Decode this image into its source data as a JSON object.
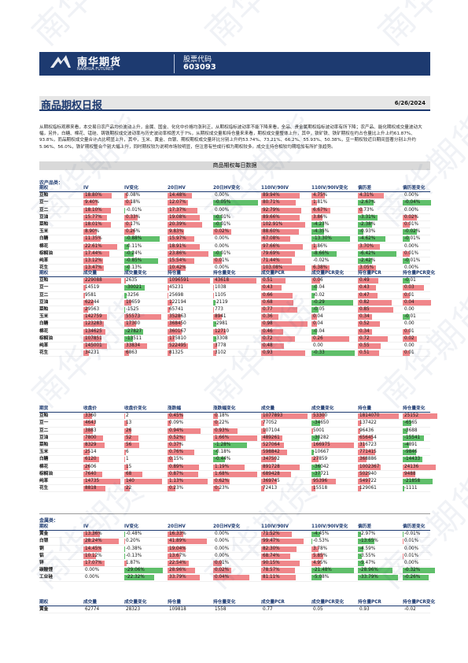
{
  "header": {
    "brand": "南华期货",
    "brand_en": "NANHUA FUTURES",
    "code_label": "股票代码",
    "code": "603093"
  },
  "title": "商品期权日报",
  "date": "6/26/2024",
  "summary": "从期权指标观察来看，本交易日农产品均价波动上升，金属、国金、化化中价格均涨利正，从期权指标波动率不能下降来看，全品、贵金属期权指标波动率有所下降；农产品、能化期权成交量波动大幅，另外，白糖、棉花、锰硅、铸铁期权成交波动率与历史波动率相差大于7%，从期权成交量和持仓量来来看，期权成交量整体上升，其中，铁矿铁、铁矿期权在约占仓量比上升上约61.87%、93.8%，而品期权成交量合计占比明显上升，其中，玉米、黄金、白银、期权期权成交量环比分别上升约53.74%、73.21%、66.2%、55.93%、50.38%，豆一期权较近日期间显著分别上升约5.96%、56.0%，铁矿期权整合个别大幅上升，同时期权较为说明市场较明显，但注意有些成行相为期权较多。成交主持仓相较均期增加有所扩张趋势。",
  "section": "商品期权每日数据",
  "ag": {
    "label": "农产品类：",
    "h1": [
      "期权",
      "IV",
      "IV变化",
      "20日HV",
      "20日HV变化",
      "110IV/90IV",
      "110IV/90IV变化",
      "偏历差",
      "偏历差变化"
    ],
    "n": [
      "豆粕",
      "豆一",
      "豆二",
      "豆油",
      "菜粕",
      "玉米",
      "白糖",
      "棉花",
      "棕榈油",
      "纯苯",
      "花生"
    ],
    "t1": [
      [
        "18.80%",
        "0.08%",
        "14.48%",
        "0.00%",
        "89.94%",
        "4.75%",
        "4.31%",
        "0.00%"
      ],
      [
        "9.40%",
        "0.18%",
        "12.07%",
        "-0.05%",
        "80.71%",
        "1.81%",
        "-2.67%",
        "-0.04%"
      ],
      [
        "18.10%",
        "-0.01%",
        "17.37%",
        "0.00%",
        "92.79%",
        "6.67%",
        "0.73%",
        "0.00%"
      ],
      [
        "15.77%",
        "0.33%",
        "19.08%",
        "-0.01%",
        "89.66%",
        "3.86%",
        "-3.31%",
        "0.02%"
      ],
      [
        "18.01%",
        "0.17%",
        "20.39%",
        "-0.01%",
        "102.91%",
        "-4.23%",
        "-2.38%",
        "0.01%"
      ],
      [
        "8.90%",
        "0.26%",
        "9.83%",
        "0.02%",
        "88.60%",
        "-4.35%",
        "-0.93%",
        "-0.02%"
      ],
      [
        "11.35%",
        "-0.88%",
        "15.97%",
        "0.00%",
        "67.08%",
        "-13.30%",
        "-4.62%",
        "-0.01%"
      ],
      [
        "22.61%",
        "-0.11%",
        "18.91%",
        "0.00%",
        "97.66%",
        "1.86%",
        "3.70%",
        "0.00%"
      ],
      [
        "17.44%",
        "-0.24%",
        "23.86%",
        "-0.01%",
        "79.69%",
        "-8.66%",
        "-6.42%",
        "0.01%"
      ],
      [
        "13.12%",
        "-0.85%",
        "15.54%",
        "0.01%",
        "71.44%",
        "-0.02%",
        "-2.42%",
        "-0.01%"
      ],
      [
        "13.47%",
        "-0.13%",
        "10.42%",
        "0.00%",
        "103.08%",
        "6.38%",
        "3.05%",
        "0.00%"
      ]
    ],
    "h2": [
      "期权",
      "成交量",
      "成交量变化",
      "持仓量",
      "持仓量变化",
      "成交量PCR",
      "成交量PCR变化",
      "持仓量PCR",
      "持仓量PCR变化"
    ],
    "t2": [
      [
        "229088",
        "2635",
        "1096591",
        "43618",
        "0.51",
        "0.06",
        "0.49",
        "-0.01"
      ],
      [
        "14519",
        "-30021",
        "45231",
        "1038",
        "0.43",
        "-0.04",
        "0.43",
        "0.03"
      ],
      [
        "9581",
        "-3256",
        "25698",
        "1105",
        "0.66",
        "-0.02",
        "0.47",
        "0.01"
      ],
      [
        "62244",
        "10659",
        "122194",
        "-2119",
        "0.68",
        "-0.29",
        "0.82",
        "0.04"
      ],
      [
        "29563",
        "-1525",
        "65741",
        "773",
        "0.77",
        "-0.05",
        "0.85",
        "0.00"
      ],
      [
        "142759",
        "55573",
        "352863",
        "8941",
        "0.36",
        "0.04",
        "0.34",
        "-0.01"
      ],
      [
        "123283",
        "17300",
        "368450",
        "-2981",
        "0.98",
        "0.04",
        "0.52",
        "0.00"
      ],
      [
        "134625",
        "-27827",
        "360167",
        "12710",
        "0.46",
        "-0.04",
        "0.34",
        "0.01"
      ],
      [
        "107851",
        "-13511",
        "175810",
        "-3308",
        "0.72",
        "0.26",
        "0.72",
        "0.02"
      ],
      [
        "145001",
        "33834",
        "522495",
        "3778",
        "0.48",
        "0.00",
        "0.55",
        "0.00"
      ],
      [
        "34231",
        "6863",
        "81325",
        "3102",
        "0.93",
        "-0.33",
        "0.51",
        "0.01"
      ]
    ],
    "h3": [
      "期货",
      "收盘价",
      "收盘价变化",
      "涨跌幅",
      "涨跌幅变化",
      "成交量",
      "成交量变化",
      "持仓量",
      "持仓量变化"
    ],
    "t3": [
      [
        "3360",
        "2",
        "0.45%",
        "0.18%",
        "1077893",
        "53300",
        "1814070",
        "25152"
      ],
      [
        "4643",
        "13",
        "0.09%",
        "0.22%",
        "77052",
        "-34650",
        "137422",
        "-6565"
      ],
      [
        "3883",
        "26",
        "0.94%",
        "0.93%",
        "107104",
        "5001",
        "96436",
        "-3688"
      ],
      [
        "7800",
        "52",
        "0.52%",
        "1.66%",
        "489261",
        "-30282",
        "656454",
        "-15541"
      ],
      [
        "8329",
        "56",
        "0.37%",
        "-1.28%",
        "527064",
        "166975",
        "316723",
        "-4891"
      ],
      [
        "2514",
        "6",
        "0.76%",
        "-0.18%",
        "598842",
        "-10667",
        "771415",
        "-9846"
      ],
      [
        "6120",
        "1",
        "0.15%",
        "-0.44%",
        "347502",
        "27859",
        "368886",
        "-14433"
      ],
      [
        "2606",
        "15",
        "0.89%",
        "1.19%",
        "891728",
        "-36042",
        "1002367",
        "24136"
      ],
      [
        "7640",
        "68",
        "0.87%",
        "1.68%",
        "689428",
        "-37721",
        "502940",
        "9488"
      ],
      [
        "14735",
        "140",
        "1.13%",
        "0.62%",
        "369745",
        "95396",
        "549722",
        "-21858"
      ],
      [
        "8818",
        "22",
        "0.23%",
        "0.23%",
        "72413",
        "15518",
        "129061",
        "-1111"
      ]
    ]
  },
  "mt": {
    "label": "金属类：",
    "n": [
      "黄金",
      "白银",
      "铜",
      "铝",
      "锌",
      "碳酸锂",
      "工业硅"
    ],
    "t1": [
      [
        "13.36%",
        "-0.48%",
        "16.33%",
        "0.00%",
        "71.52%",
        "-4.45%",
        "-2.97%",
        "-0.01%"
      ],
      [
        "28.24%",
        "0.20%",
        "41.89%",
        "0.00%",
        "99.47%",
        "-0.53%",
        "-13.65%",
        "0.01%"
      ],
      [
        "14.45%",
        "-0.38%",
        "19.04%",
        "0.00%",
        "82.30%",
        "3.78%",
        "-4.59%",
        "0.00%"
      ],
      [
        "10.12%",
        "-0.13%",
        "13.67%",
        "0.00%",
        "68.74%",
        "5.85%",
        "-3.55%",
        "0.01%"
      ],
      [
        "17.07%",
        "1.87%",
        "22.54%",
        "0.01%",
        "90.15%",
        "4.95%",
        "-5.47%",
        "0.00%"
      ],
      [
        "0.00%",
        "-29.06%",
        "28.96%",
        "0.02%",
        "78.57%",
        "-21.48%",
        "-28.96%",
        "-0.32%"
      ],
      [
        "0.00%",
        "-22.32%",
        "33.79%",
        "0.04%",
        "81.11%",
        "-5.08%",
        "-33.79%",
        "-0.26%"
      ]
    ],
    "t2": [
      [
        "62774",
        "28323",
        "109818",
        "1558",
        "0.77",
        "0.05",
        "0.93",
        "-0.02"
      ]
    ]
  },
  "colors": {
    "accent": "#1d3a70",
    "positive": "#f0868a",
    "negative": "#5fbf6a"
  }
}
